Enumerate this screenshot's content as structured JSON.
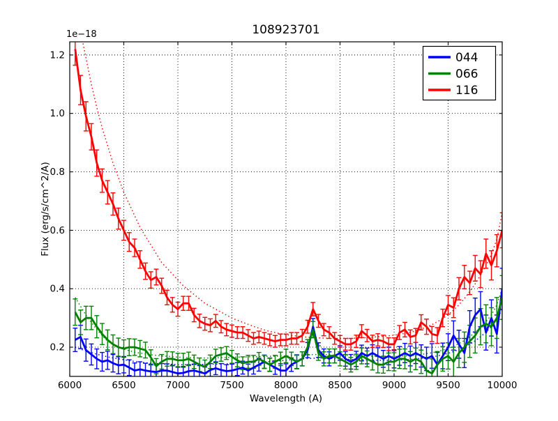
{
  "figure": {
    "title": "108923701",
    "offset_text": "1e−18"
  },
  "axes": {
    "xlabel": "Wavelength (A)",
    "ylabel": "Flux (erg/s/cm^2/A)"
  },
  "legend": {
    "position": "upper right",
    "entries": [
      {
        "label": "044",
        "color": "#0000ff"
      },
      {
        "label": "066",
        "color": "#008000"
      },
      {
        "label": "116",
        "color": "#ff0000"
      }
    ]
  },
  "chart_data": {
    "type": "line",
    "title": "108923701",
    "xlabel": "Wavelength (A)",
    "ylabel": "Flux (erg/s/cm^2/A)",
    "y_scale_factor": "1e-18",
    "xlim": [
      6000,
      10000
    ],
    "ylim": [
      0.1,
      1.245
    ],
    "grid": true,
    "grid_style": "dotted-black",
    "x_ticks": [
      6000,
      6500,
      7000,
      7500,
      8000,
      8500,
      9000,
      9500,
      10000
    ],
    "x_tick_labels": [
      "6000",
      "6500",
      "7000",
      "7500",
      "8000",
      "8500",
      "9000",
      "9500",
      "10000"
    ],
    "y_ticks": [
      0.2,
      0.4,
      0.6,
      0.8,
      1.0,
      1.2
    ],
    "y_tick_labels": [
      "0.2",
      "0.4",
      "0.6",
      "0.8",
      "1.0",
      "1.2"
    ],
    "x_start": 6050,
    "x_step": 50,
    "series": [
      {
        "name": "044",
        "color": "#0000ff",
        "style": "solid-with-errorbars-plus-dotted-template",
        "values": [
          0.225,
          0.235,
          0.19,
          0.175,
          0.16,
          0.15,
          0.155,
          0.145,
          0.138,
          0.14,
          0.13,
          0.12,
          0.124,
          0.12,
          0.117,
          0.115,
          0.12,
          0.12,
          0.115,
          0.11,
          0.112,
          0.118,
          0.12,
          0.115,
          0.11,
          0.122,
          0.128,
          0.122,
          0.118,
          0.12,
          0.125,
          0.13,
          0.12,
          0.13,
          0.14,
          0.15,
          0.14,
          0.13,
          0.12,
          0.12,
          0.14,
          0.15,
          0.16,
          0.19,
          0.27,
          0.19,
          0.17,
          0.16,
          0.17,
          0.18,
          0.16,
          0.15,
          0.16,
          0.18,
          0.17,
          0.18,
          0.17,
          0.16,
          0.17,
          0.16,
          0.17,
          0.18,
          0.17,
          0.18,
          0.17,
          0.16,
          0.17,
          0.14,
          0.17,
          0.2,
          0.24,
          0.21,
          0.18,
          0.27,
          0.31,
          0.33,
          0.25,
          0.3,
          0.245,
          0.4
        ],
        "errors": [
          0.04,
          0.04,
          0.038,
          0.036,
          0.034,
          0.032,
          0.031,
          0.03,
          0.029,
          0.028,
          0.027,
          0.026,
          0.026,
          0.025,
          0.025,
          0.024,
          0.024,
          0.023,
          0.023,
          0.023,
          0.022,
          0.022,
          0.022,
          0.022,
          0.022,
          0.022,
          0.022,
          0.022,
          0.022,
          0.022,
          0.022,
          0.022,
          0.022,
          0.022,
          0.022,
          0.023,
          0.023,
          0.023,
          0.023,
          0.023,
          0.023,
          0.024,
          0.024,
          0.026,
          0.028,
          0.025,
          0.024,
          0.024,
          0.024,
          0.025,
          0.025,
          0.025,
          0.026,
          0.027,
          0.027,
          0.028,
          0.028,
          0.029,
          0.03,
          0.031,
          0.032,
          0.033,
          0.034,
          0.036,
          0.038,
          0.04,
          0.042,
          0.042,
          0.044,
          0.046,
          0.05,
          0.048,
          0.05,
          0.055,
          0.058,
          0.06,
          0.06,
          0.062,
          0.065,
          0.07
        ],
        "template": [
          0.2,
          0.193,
          0.187,
          0.181,
          0.176,
          0.171,
          0.167,
          0.163,
          0.16,
          0.157,
          0.154,
          0.151,
          0.149,
          0.147,
          0.145,
          0.144,
          0.143,
          0.142,
          0.141,
          0.14,
          0.14,
          0.14,
          0.14,
          0.141,
          0.141,
          0.142,
          0.142,
          0.143,
          0.143,
          0.144,
          0.145,
          0.146,
          0.147,
          0.148,
          0.149,
          0.15,
          0.151,
          0.153,
          0.154,
          0.155,
          0.157,
          0.158,
          0.16,
          0.161,
          0.162,
          0.163,
          0.163,
          0.162,
          0.161,
          0.16,
          0.159,
          0.158,
          0.157,
          0.157,
          0.156,
          0.156,
          0.155,
          0.155,
          0.155,
          0.155,
          0.156,
          0.157,
          0.158,
          0.16,
          0.162,
          0.164,
          0.167,
          0.17,
          0.174,
          0.179,
          0.185,
          0.192,
          0.2,
          0.21,
          0.222,
          0.236,
          0.252,
          0.27,
          0.295,
          0.33
        ]
      },
      {
        "name": "066",
        "color": "#008000",
        "style": "solid-with-errorbars-plus-dotted-template",
        "values": [
          0.32,
          0.285,
          0.3,
          0.3,
          0.27,
          0.245,
          0.225,
          0.21,
          0.2,
          0.195,
          0.2,
          0.2,
          0.195,
          0.19,
          0.165,
          0.135,
          0.15,
          0.16,
          0.16,
          0.155,
          0.155,
          0.16,
          0.15,
          0.14,
          0.133,
          0.15,
          0.17,
          0.175,
          0.18,
          0.167,
          0.155,
          0.145,
          0.15,
          0.15,
          0.16,
          0.15,
          0.14,
          0.15,
          0.16,
          0.17,
          0.16,
          0.15,
          0.16,
          0.2,
          0.26,
          0.18,
          0.16,
          0.17,
          0.17,
          0.16,
          0.15,
          0.14,
          0.15,
          0.17,
          0.16,
          0.15,
          0.14,
          0.14,
          0.15,
          0.15,
          0.16,
          0.16,
          0.15,
          0.16,
          0.15,
          0.12,
          0.11,
          0.14,
          0.16,
          0.17,
          0.15,
          0.18,
          0.2,
          0.22,
          0.24,
          0.27,
          0.28,
          0.27,
          0.3,
          0.37
        ],
        "errors": [
          0.045,
          0.042,
          0.04,
          0.04,
          0.038,
          0.036,
          0.034,
          0.032,
          0.031,
          0.03,
          0.029,
          0.028,
          0.028,
          0.027,
          0.026,
          0.026,
          0.025,
          0.025,
          0.024,
          0.024,
          0.024,
          0.023,
          0.023,
          0.023,
          0.023,
          0.023,
          0.023,
          0.023,
          0.022,
          0.022,
          0.022,
          0.022,
          0.022,
          0.022,
          0.022,
          0.022,
          0.022,
          0.022,
          0.023,
          0.023,
          0.023,
          0.023,
          0.024,
          0.026,
          0.028,
          0.025,
          0.024,
          0.024,
          0.024,
          0.024,
          0.025,
          0.025,
          0.026,
          0.027,
          0.027,
          0.028,
          0.028,
          0.029,
          0.03,
          0.031,
          0.033,
          0.034,
          0.035,
          0.037,
          0.04,
          0.045,
          0.05,
          0.045,
          0.042,
          0.045,
          0.05,
          0.05,
          0.052,
          0.055,
          0.06,
          0.062,
          0.065,
          0.065,
          0.07,
          0.075
        ],
        "template": [
          0.37,
          0.34,
          0.31,
          0.285,
          0.26,
          0.24,
          0.22,
          0.21,
          0.2,
          0.193,
          0.188,
          0.183,
          0.18,
          0.177,
          0.174,
          0.172,
          0.17,
          0.169,
          0.167,
          0.166,
          0.165,
          0.164,
          0.164,
          0.163,
          0.163,
          0.163,
          0.164,
          0.164,
          0.165,
          0.165,
          0.166,
          0.166,
          0.167,
          0.167,
          0.168,
          0.168,
          0.169,
          0.169,
          0.17,
          0.17,
          0.171,
          0.172,
          0.173,
          0.174,
          0.175,
          0.175,
          0.174,
          0.174,
          0.173,
          0.173,
          0.172,
          0.172,
          0.171,
          0.171,
          0.17,
          0.17,
          0.169,
          0.169,
          0.168,
          0.168,
          0.169,
          0.17,
          0.171,
          0.173,
          0.175,
          0.178,
          0.181,
          0.185,
          0.19,
          0.196,
          0.203,
          0.212,
          0.223,
          0.236,
          0.251,
          0.268,
          0.288,
          0.31,
          0.345,
          0.4
        ]
      },
      {
        "name": "116",
        "color": "#ff0000",
        "style": "solid-with-errorbars-plus-dotted-template",
        "values": [
          1.22,
          1.08,
          0.99,
          0.92,
          0.83,
          0.77,
          0.73,
          0.69,
          0.64,
          0.6,
          0.56,
          0.54,
          0.5,
          0.46,
          0.43,
          0.44,
          0.41,
          0.37,
          0.345,
          0.33,
          0.35,
          0.35,
          0.31,
          0.29,
          0.28,
          0.275,
          0.29,
          0.27,
          0.26,
          0.255,
          0.25,
          0.25,
          0.24,
          0.23,
          0.235,
          0.23,
          0.225,
          0.22,
          0.225,
          0.225,
          0.23,
          0.23,
          0.24,
          0.27,
          0.33,
          0.29,
          0.26,
          0.25,
          0.23,
          0.22,
          0.21,
          0.21,
          0.22,
          0.255,
          0.24,
          0.22,
          0.225,
          0.22,
          0.21,
          0.21,
          0.25,
          0.26,
          0.235,
          0.24,
          0.285,
          0.27,
          0.245,
          0.24,
          0.3,
          0.345,
          0.335,
          0.4,
          0.44,
          0.42,
          0.47,
          0.45,
          0.52,
          0.48,
          0.53,
          0.6
        ],
        "errors": [
          0.055,
          0.05,
          0.05,
          0.045,
          0.045,
          0.04,
          0.04,
          0.038,
          0.036,
          0.034,
          0.032,
          0.03,
          0.03,
          0.028,
          0.028,
          0.027,
          0.026,
          0.025,
          0.025,
          0.024,
          0.024,
          0.024,
          0.023,
          0.023,
          0.022,
          0.022,
          0.022,
          0.021,
          0.021,
          0.021,
          0.02,
          0.02,
          0.02,
          0.02,
          0.02,
          0.02,
          0.02,
          0.02,
          0.02,
          0.02,
          0.02,
          0.02,
          0.021,
          0.022,
          0.023,
          0.022,
          0.021,
          0.02,
          0.02,
          0.02,
          0.02,
          0.02,
          0.021,
          0.022,
          0.021,
          0.021,
          0.021,
          0.021,
          0.022,
          0.022,
          0.024,
          0.025,
          0.024,
          0.024,
          0.026,
          0.026,
          0.026,
          0.027,
          0.03,
          0.032,
          0.034,
          0.038,
          0.04,
          0.04,
          0.044,
          0.046,
          0.05,
          0.05,
          0.055,
          0.06
        ],
        "template": [
          1.38,
          1.28,
          1.19,
          1.1,
          1.02,
          0.95,
          0.89,
          0.83,
          0.78,
          0.73,
          0.69,
          0.65,
          0.61,
          0.58,
          0.55,
          0.52,
          0.49,
          0.47,
          0.45,
          0.43,
          0.41,
          0.395,
          0.38,
          0.365,
          0.35,
          0.34,
          0.33,
          0.32,
          0.31,
          0.3,
          0.292,
          0.285,
          0.278,
          0.271,
          0.265,
          0.259,
          0.254,
          0.25,
          0.246,
          0.243,
          0.24,
          0.238,
          0.236,
          0.234,
          0.233,
          0.232,
          0.231,
          0.23,
          0.23,
          0.23,
          0.23,
          0.23,
          0.231,
          0.232,
          0.233,
          0.234,
          0.236,
          0.237,
          0.239,
          0.241,
          0.244,
          0.247,
          0.251,
          0.256,
          0.262,
          0.269,
          0.277,
          0.287,
          0.298,
          0.311,
          0.327,
          0.345,
          0.366,
          0.39,
          0.417,
          0.447,
          0.48,
          0.517,
          0.57,
          0.66
        ]
      }
    ]
  }
}
